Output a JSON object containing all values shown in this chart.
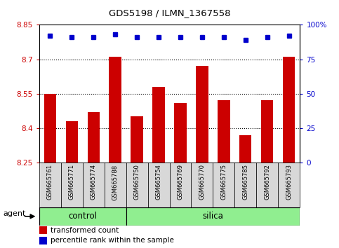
{
  "title": "GDS5198 / ILMN_1367558",
  "samples": [
    "GSM665761",
    "GSM665771",
    "GSM665774",
    "GSM665788",
    "GSM665750",
    "GSM665754",
    "GSM665769",
    "GSM665770",
    "GSM665775",
    "GSM665785",
    "GSM665792",
    "GSM665793"
  ],
  "bar_values": [
    8.55,
    8.43,
    8.47,
    8.71,
    8.45,
    8.58,
    8.51,
    8.67,
    8.52,
    8.37,
    8.52,
    8.71
  ],
  "percentile_values": [
    92,
    91,
    91,
    93,
    91,
    91,
    91,
    91,
    91,
    89,
    91,
    92
  ],
  "ylim_left": [
    8.25,
    8.85
  ],
  "ylim_right": [
    0,
    100
  ],
  "yticks_left": [
    8.25,
    8.4,
    8.55,
    8.7,
    8.85
  ],
  "yticks_right": [
    0,
    25,
    50,
    75,
    100
  ],
  "ytick_labels_left": [
    "8.25",
    "8.4",
    "8.55",
    "8.7",
    "8.85"
  ],
  "ytick_labels_right": [
    "0",
    "25",
    "50",
    "75",
    "100%"
  ],
  "bar_color": "#cc0000",
  "dot_color": "#0000cc",
  "grid_color": "#000000",
  "tick_bg_color": "#d8d8d8",
  "control_color": "#90ee90",
  "silica_color": "#90ee90",
  "n_control": 4,
  "n_silica": 8,
  "control_label": "control",
  "silica_label": "silica",
  "agent_label": "agent",
  "legend_bar_label": "transformed count",
  "legend_dot_label": "percentile rank within the sample"
}
